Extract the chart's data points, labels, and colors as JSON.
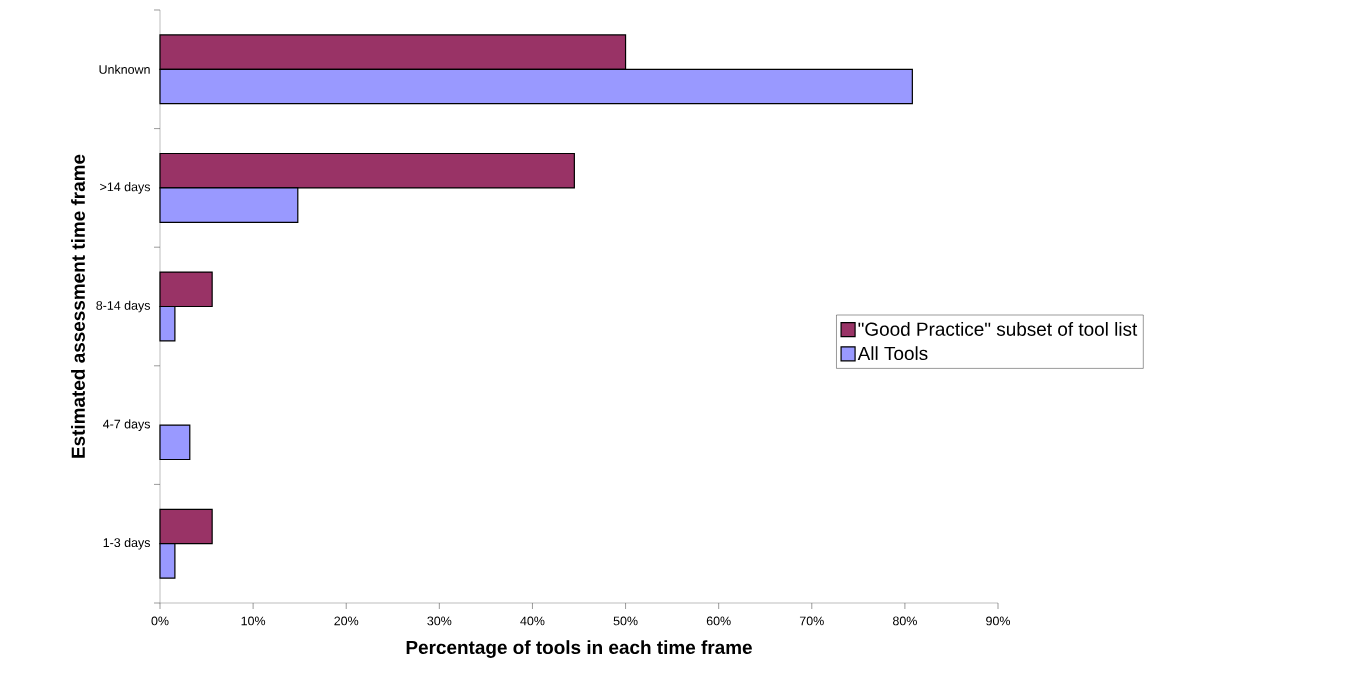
{
  "chart_data": {
    "type": "bar",
    "orientation": "horizontal",
    "xlabel": "Percentage of tools in each time frame",
    "ylabel": "Estimated assessment time frame",
    "categories": [
      "Unknown",
      ">14 days",
      "8-14 days",
      "4-7 days",
      "1-3 days"
    ],
    "series": [
      {
        "name": "\"Good Practice\" subset of tool list",
        "color": "#993366",
        "values": [
          50,
          44.5,
          5.6,
          0,
          5.6
        ]
      },
      {
        "name": "All Tools",
        "color": "#9999ff",
        "values": [
          80.8,
          14.8,
          1.6,
          3.2,
          1.6
        ]
      }
    ],
    "xlim": [
      0,
      90
    ],
    "xticks": [
      {
        "value": 0,
        "label": "0%"
      },
      {
        "value": 10,
        "label": "10%"
      },
      {
        "value": 20,
        "label": "20%"
      },
      {
        "value": 30,
        "label": "30%"
      },
      {
        "value": 40,
        "label": "40%"
      },
      {
        "value": 50,
        "label": "50%"
      },
      {
        "value": 60,
        "label": "60%"
      },
      {
        "value": 70,
        "label": "70%"
      },
      {
        "value": 80,
        "label": "80%"
      },
      {
        "value": 90,
        "label": "90%"
      }
    ],
    "legend": "right"
  }
}
